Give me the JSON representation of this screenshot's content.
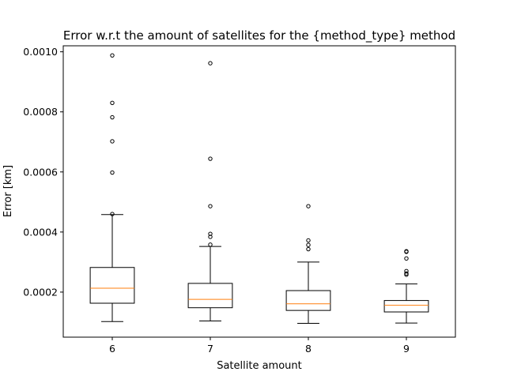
{
  "chart_data": {
    "type": "boxplot",
    "title": "Error w.r.t the amount of satellites for the {method_type} method",
    "xlabel": "Satellite amount",
    "ylabel": "Error [km]",
    "categories": [
      "6",
      "7",
      "8",
      "9"
    ],
    "ylim": [
      5e-05,
      0.00102
    ],
    "yticks": [
      0.0002,
      0.0004,
      0.0006,
      0.0008,
      0.001
    ],
    "ytick_labels": [
      "0.0002",
      "0.0004",
      "0.0006",
      "0.0008",
      "0.0010"
    ],
    "boxes": [
      {
        "category": "6",
        "whisker_low": 0.000102,
        "q1": 0.000163,
        "median": 0.000213,
        "q3": 0.000282,
        "whisker_high": 0.000458,
        "fliers": [
          0.00046,
          0.000598,
          0.000702,
          0.000782,
          0.00083,
          0.000988
        ]
      },
      {
        "category": "7",
        "whisker_low": 0.000104,
        "q1": 0.000148,
        "median": 0.000176,
        "q3": 0.000229,
        "whisker_high": 0.000352,
        "fliers": [
          0.000358,
          0.000384,
          0.000394,
          0.000486,
          0.000644,
          0.000962
        ]
      },
      {
        "category": "8",
        "whisker_low": 9.6e-05,
        "q1": 0.000139,
        "median": 0.000161,
        "q3": 0.000205,
        "whisker_high": 0.0003,
        "fliers": [
          0.000343,
          0.000357,
          0.000372,
          0.000486
        ]
      },
      {
        "category": "9",
        "whisker_low": 9.7e-05,
        "q1": 0.000134,
        "median": 0.000156,
        "q3": 0.000172,
        "whisker_high": 0.000227,
        "fliers": [
          0.000258,
          0.000262,
          0.00027,
          0.000312,
          0.000334,
          0.000336
        ]
      }
    ],
    "colors": {
      "box": "#000000",
      "median": "#ff7f0e",
      "flier": "#000000"
    },
    "grid": false,
    "legend": "none"
  }
}
